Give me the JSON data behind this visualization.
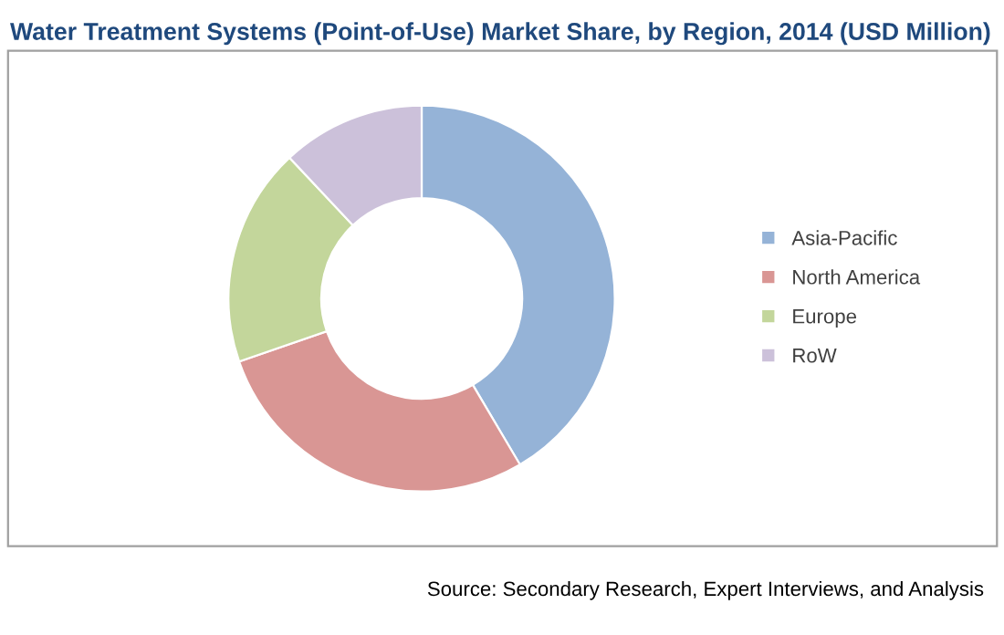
{
  "chart_data": {
    "type": "donut",
    "title": "Water Treatment Systems (Point-of-Use) Market Share, by Region, 2014 (USD Million)",
    "categories": [
      "Asia-Pacific",
      "North America",
      "Europe",
      "RoW"
    ],
    "values": [
      41.5,
      28.2,
      18.3,
      12.0
    ],
    "colors": [
      "#95b3d7",
      "#d99694",
      "#c3d69b",
      "#ccc1da"
    ],
    "legend": "right",
    "annotations": [
      "Source: Secondary Research, Expert Interviews, and Analysis"
    ]
  }
}
